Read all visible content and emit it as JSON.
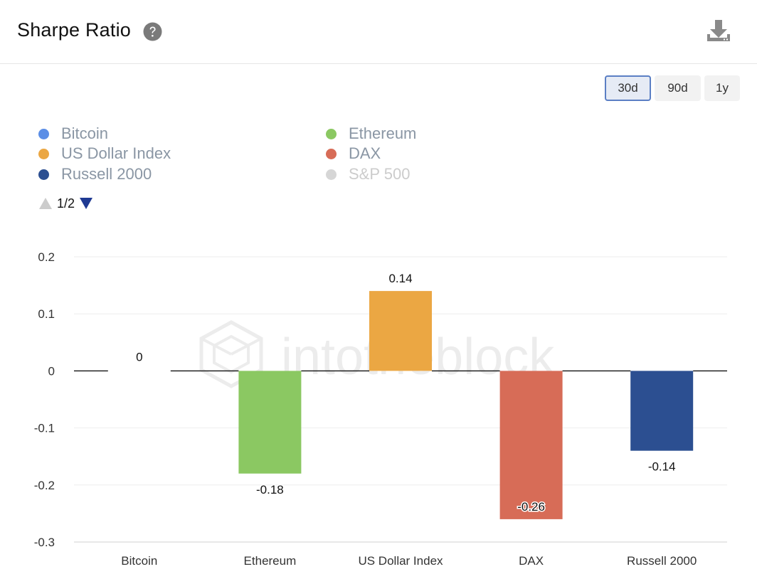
{
  "header": {
    "title": "Sharpe Ratio",
    "help_icon": "question-circle-icon",
    "download_icon": "download-icon"
  },
  "ranges": [
    {
      "label": "30d",
      "active": true
    },
    {
      "label": "90d",
      "active": false
    },
    {
      "label": "1y",
      "active": false
    }
  ],
  "legend": {
    "items": [
      {
        "label": "Bitcoin",
        "color": "#5b8ee6",
        "enabled": true
      },
      {
        "label": "Ethereum",
        "color": "#8bc862",
        "enabled": true
      },
      {
        "label": "US Dollar Index",
        "color": "#eba743",
        "enabled": true
      },
      {
        "label": "DAX",
        "color": "#d76c57",
        "enabled": true
      },
      {
        "label": "Russell 2000",
        "color": "#2c4f91",
        "enabled": true
      },
      {
        "label": "S&P 500",
        "color": "#d6d6d6",
        "enabled": false
      }
    ],
    "pager": "1/2"
  },
  "watermark": "intotheblock",
  "chart_data": {
    "type": "bar",
    "categories": [
      "Bitcoin",
      "Ethereum",
      "US Dollar Index",
      "DAX",
      "Russell 2000"
    ],
    "values": [
      0,
      -0.18,
      0.14,
      -0.26,
      -0.14
    ],
    "data_labels": [
      "0",
      "-0.18",
      "0.14",
      "-0.26",
      "-0.14"
    ],
    "colors": [
      "#5b8ee6",
      "#8bc862",
      "#eba743",
      "#d76c57",
      "#2c4f91"
    ],
    "y_ticks": [
      0.2,
      0.1,
      0,
      -0.1,
      -0.2,
      -0.3
    ],
    "y_tick_labels": [
      "0.2",
      "0.1",
      "0",
      "-0.1",
      "-0.2",
      "-0.3"
    ],
    "ylim": [
      -0.3,
      0.2
    ],
    "grid": true,
    "title": "",
    "xlabel": "",
    "ylabel": ""
  }
}
